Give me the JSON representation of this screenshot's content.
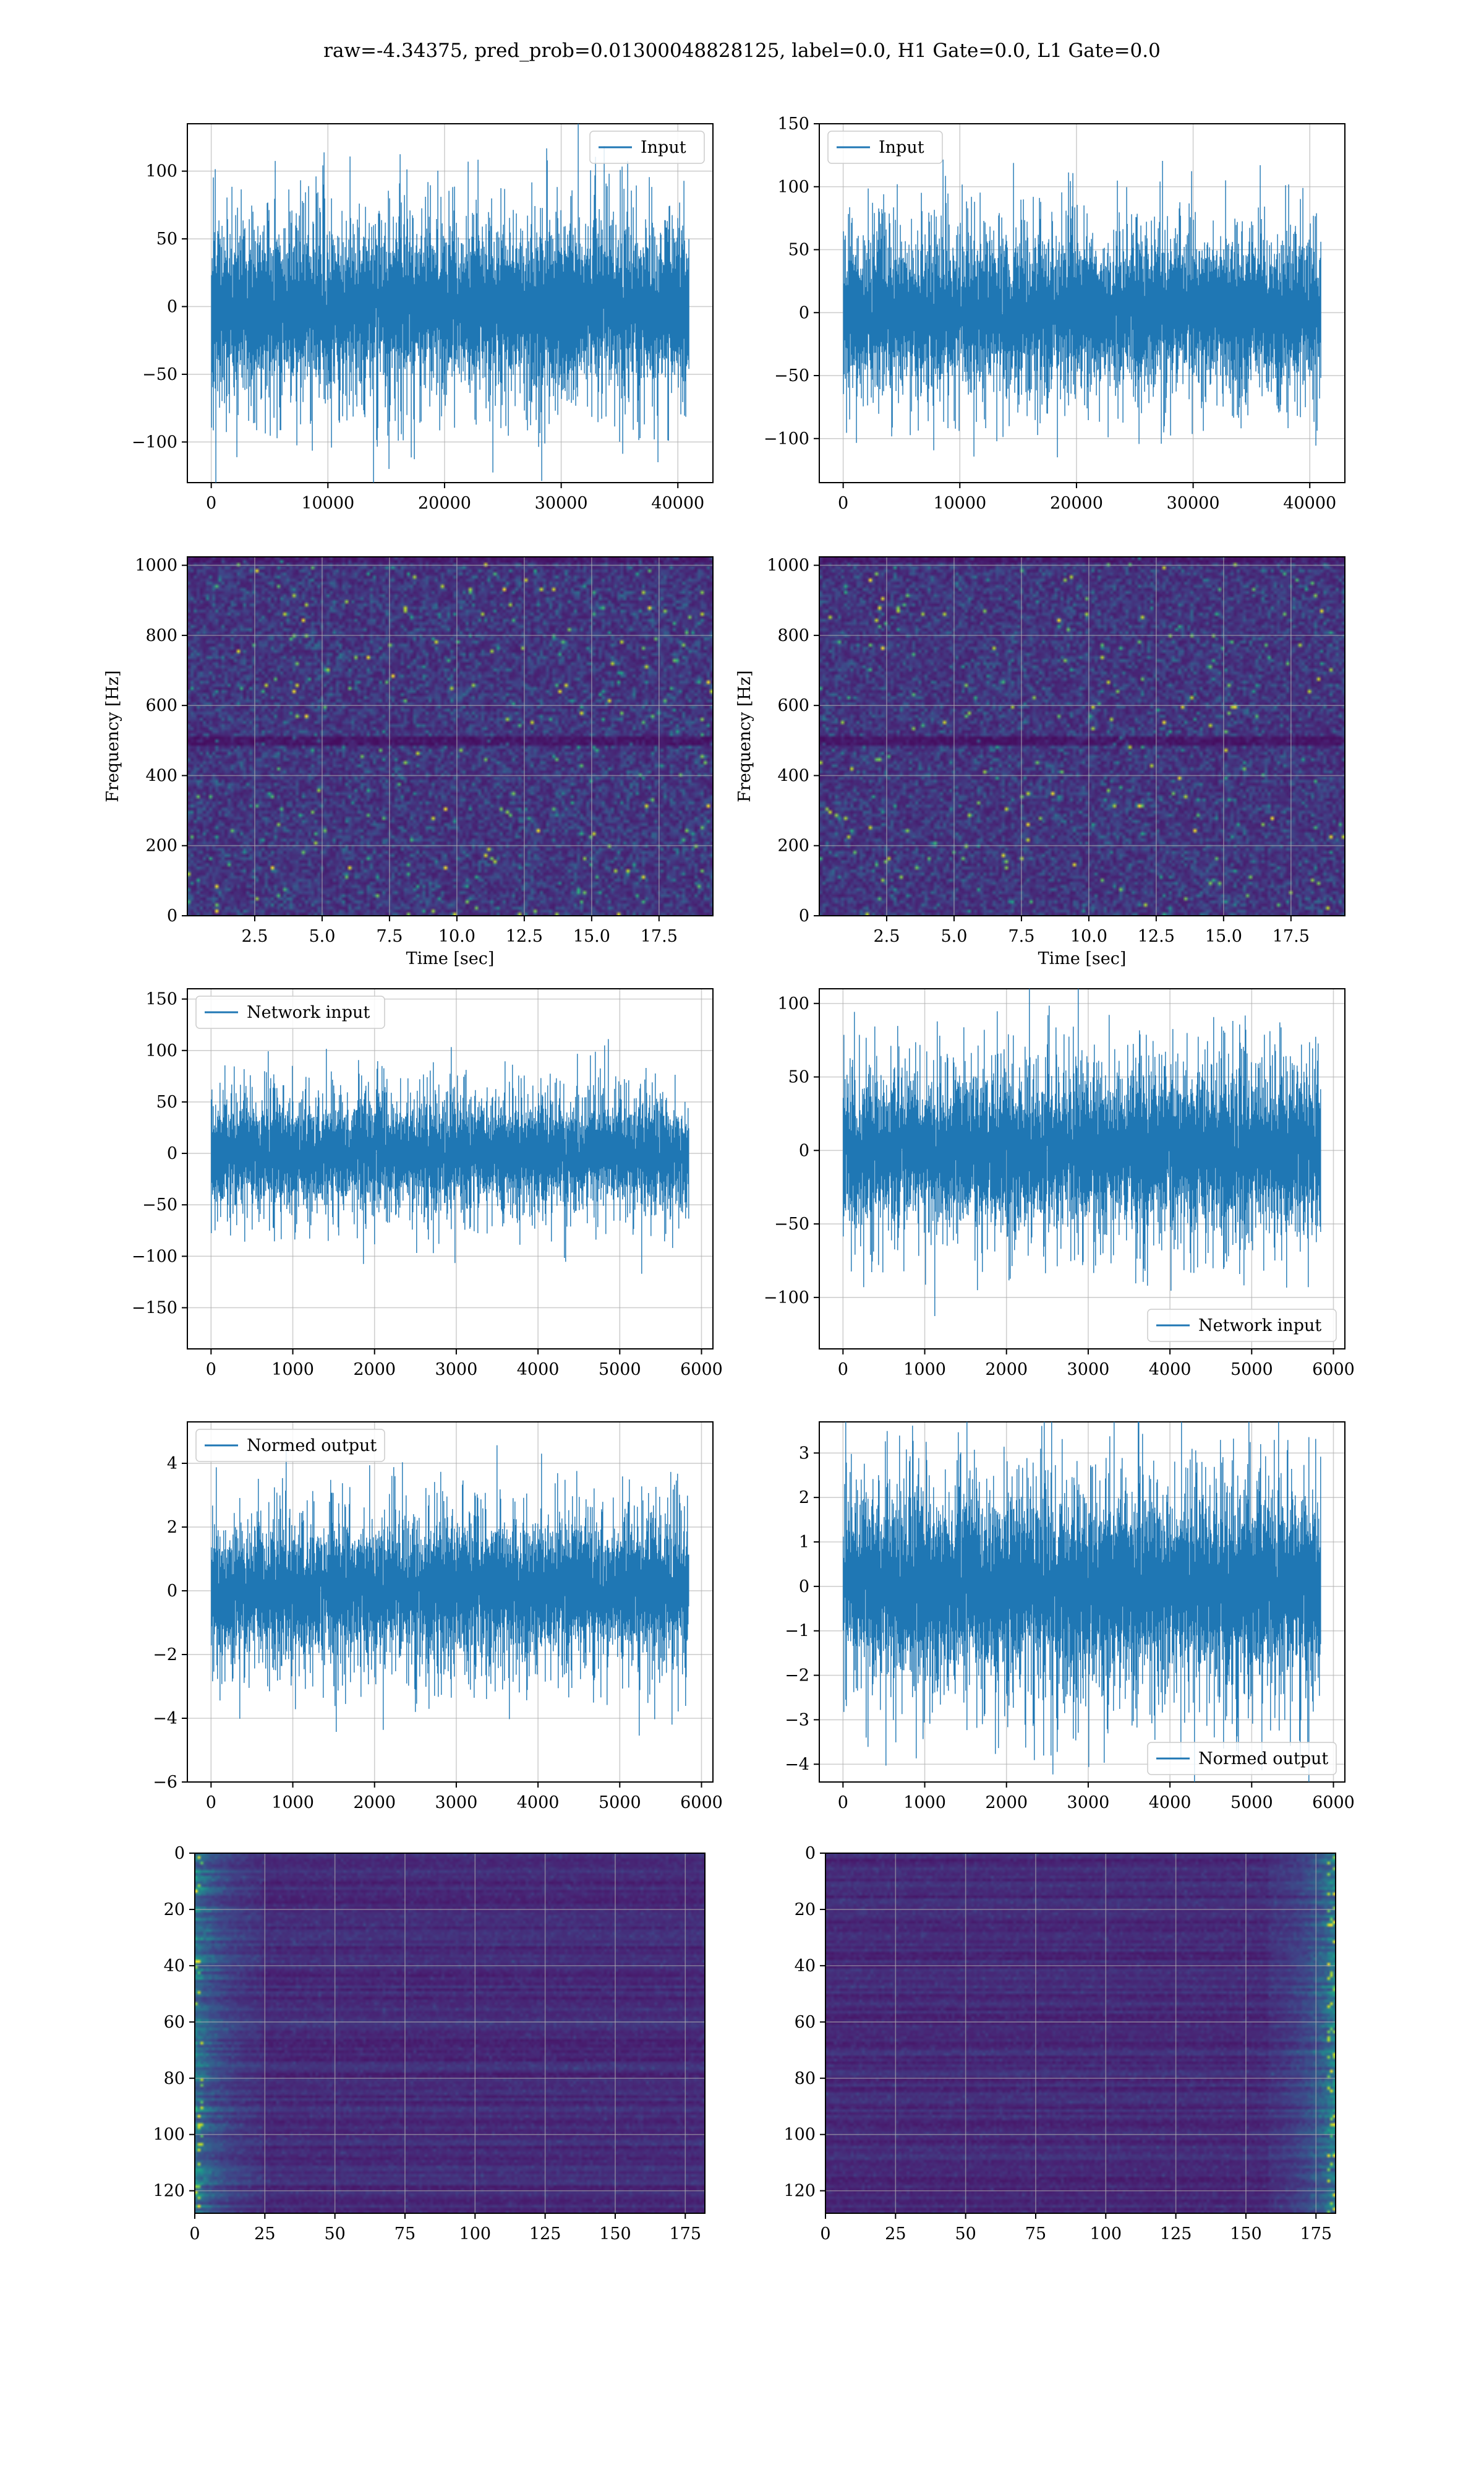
{
  "figure": {
    "suptitle": "raw=-4.34375, pred_prob=0.01300048828125, label=0.0, H1 Gate=0.0, L1 Gate=0.0"
  },
  "colors": {
    "line": "#1f77b4",
    "grid": "#b0b0b0",
    "viridis_dark": "#440154",
    "viridis_bright": "#fde725"
  },
  "chart_data": [
    {
      "id": "input_h1",
      "type": "line",
      "series": [
        {
          "name": "Input",
          "n": 40960,
          "approx_std": 25
        }
      ],
      "xlim": [
        -2048,
        43008
      ],
      "ylim": [
        -130,
        135
      ],
      "xticks": [
        0,
        10000,
        20000,
        30000,
        40000
      ],
      "xtick_labels": [
        "0",
        "10000",
        "20000",
        "30000",
        "40000"
      ],
      "yticks": [
        -100,
        -50,
        0,
        50,
        100
      ],
      "ytick_labels": [
        "−100",
        "−50",
        "0",
        "50",
        "100"
      ],
      "legend": "upper right",
      "grid": true,
      "xlabel": "",
      "ylabel": ""
    },
    {
      "id": "input_l1",
      "type": "line",
      "series": [
        {
          "name": "Input",
          "n": 40960,
          "approx_std": 25
        }
      ],
      "xlim": [
        -2048,
        43008
      ],
      "ylim": [
        -135,
        150
      ],
      "xticks": [
        0,
        10000,
        20000,
        30000,
        40000
      ],
      "xtick_labels": [
        "0",
        "10000",
        "20000",
        "30000",
        "40000"
      ],
      "yticks": [
        -100,
        -50,
        0,
        50,
        100,
        150
      ],
      "ytick_labels": [
        "−100",
        "−50",
        "0",
        "50",
        "100",
        "150"
      ],
      "legend": "upper left",
      "grid": true,
      "xlabel": "",
      "ylabel": ""
    },
    {
      "id": "spec_h1",
      "type": "heatmap",
      "xlim": [
        0,
        19.5
      ],
      "ylim": [
        0,
        1024
      ],
      "xticks": [
        2.5,
        5,
        7.5,
        10,
        12.5,
        15,
        17.5
      ],
      "xtick_labels": [
        "2.5",
        "5.0",
        "7.5",
        "10.0",
        "12.5",
        "15.0",
        "17.5"
      ],
      "yticks": [
        0,
        200,
        400,
        600,
        800,
        1000
      ],
      "ytick_labels": [
        "0",
        "200",
        "400",
        "600",
        "800",
        "1000"
      ],
      "xlabel": "Time [sec]",
      "ylabel": "Frequency [Hz]",
      "grid": true,
      "colormap": "viridis"
    },
    {
      "id": "spec_l1",
      "type": "heatmap",
      "xlim": [
        0,
        19.5
      ],
      "ylim": [
        0,
        1024
      ],
      "xticks": [
        2.5,
        5,
        7.5,
        10,
        12.5,
        15,
        17.5
      ],
      "xtick_labels": [
        "2.5",
        "5.0",
        "7.5",
        "10.0",
        "12.5",
        "15.0",
        "17.5"
      ],
      "yticks": [
        0,
        200,
        400,
        600,
        800,
        1000
      ],
      "ytick_labels": [
        "0",
        "200",
        "400",
        "600",
        "800",
        "1000"
      ],
      "xlabel": "Time [sec]",
      "ylabel": "Frequency [Hz]",
      "grid": true,
      "colormap": "viridis"
    },
    {
      "id": "net_h1",
      "type": "line",
      "series": [
        {
          "name": "Network input",
          "n": 5850,
          "approx_std": 22
        }
      ],
      "xlim": [
        -290,
        6140
      ],
      "ylim": [
        -190,
        160
      ],
      "xticks": [
        0,
        1000,
        2000,
        3000,
        4000,
        5000,
        6000
      ],
      "xtick_labels": [
        "0",
        "1000",
        "2000",
        "3000",
        "4000",
        "5000",
        "6000"
      ],
      "yticks": [
        -150,
        -100,
        -50,
        0,
        50,
        100,
        150
      ],
      "ytick_labels": [
        "−150",
        "−100",
        "−50",
        "0",
        "50",
        "100",
        "150"
      ],
      "legend": "upper left",
      "grid": true,
      "xlabel": "",
      "ylabel": ""
    },
    {
      "id": "net_l1",
      "type": "line",
      "series": [
        {
          "name": "Network input",
          "n": 5850,
          "approx_std": 22
        }
      ],
      "xlim": [
        -290,
        6140
      ],
      "ylim": [
        -135,
        110
      ],
      "xticks": [
        0,
        1000,
        2000,
        3000,
        4000,
        5000,
        6000
      ],
      "xtick_labels": [
        "0",
        "1000",
        "2000",
        "3000",
        "4000",
        "5000",
        "6000"
      ],
      "yticks": [
        -100,
        -50,
        0,
        50,
        100
      ],
      "ytick_labels": [
        "−100",
        "−50",
        "0",
        "50",
        "100"
      ],
      "legend": "lower right",
      "grid": true,
      "xlabel": "",
      "ylabel": ""
    },
    {
      "id": "norm_h1",
      "type": "line",
      "series": [
        {
          "name": "Normed output",
          "n": 5850,
          "approx_std": 0.9
        }
      ],
      "xlim": [
        -290,
        6140
      ],
      "ylim": [
        -6,
        5.3
      ],
      "xticks": [
        0,
        1000,
        2000,
        3000,
        4000,
        5000,
        6000
      ],
      "xtick_labels": [
        "0",
        "1000",
        "2000",
        "3000",
        "4000",
        "5000",
        "6000"
      ],
      "yticks": [
        -6,
        -4,
        -2,
        0,
        2,
        4
      ],
      "ytick_labels": [
        "−6",
        "−4",
        "−2",
        "0",
        "2",
        "4"
      ],
      "legend": "upper left",
      "grid": true,
      "xlabel": "",
      "ylabel": ""
    },
    {
      "id": "norm_l1",
      "type": "line",
      "series": [
        {
          "name": "Normed output",
          "n": 5850,
          "approx_std": 0.9
        }
      ],
      "xlim": [
        -290,
        6140
      ],
      "ylim": [
        -4.4,
        3.7
      ],
      "xticks": [
        0,
        1000,
        2000,
        3000,
        4000,
        5000,
        6000
      ],
      "xtick_labels": [
        "0",
        "1000",
        "2000",
        "3000",
        "4000",
        "5000",
        "6000"
      ],
      "yticks": [
        -4,
        -3,
        -2,
        -1,
        0,
        1,
        2,
        3
      ],
      "ytick_labels": [
        "−4",
        "−3",
        "−2",
        "−1",
        "0",
        "1",
        "2",
        "3"
      ],
      "legend": "lower right",
      "grid": true,
      "xlabel": "",
      "ylabel": ""
    },
    {
      "id": "feat_h1",
      "type": "heatmap",
      "rows": 128,
      "cols": 182,
      "xlim": [
        0,
        182
      ],
      "ylim": [
        128,
        0
      ],
      "xticks": [
        0,
        25,
        50,
        75,
        100,
        125,
        150,
        175
      ],
      "xtick_labels": [
        "0",
        "25",
        "50",
        "75",
        "100",
        "125",
        "150",
        "175"
      ],
      "yticks": [
        0,
        20,
        40,
        60,
        80,
        100,
        120
      ],
      "ytick_labels": [
        "0",
        "20",
        "40",
        "60",
        "80",
        "100",
        "120"
      ],
      "bright_region": "left",
      "grid": true,
      "colormap": "viridis"
    },
    {
      "id": "feat_l1",
      "type": "heatmap",
      "rows": 128,
      "cols": 182,
      "xlim": [
        0,
        182
      ],
      "ylim": [
        128,
        0
      ],
      "xticks": [
        0,
        25,
        50,
        75,
        100,
        125,
        150,
        175
      ],
      "xtick_labels": [
        "0",
        "25",
        "50",
        "75",
        "100",
        "125",
        "150",
        "175"
      ],
      "yticks": [
        0,
        20,
        40,
        60,
        80,
        100,
        120
      ],
      "ytick_labels": [
        "0",
        "20",
        "40",
        "60",
        "80",
        "100",
        "120"
      ],
      "bright_region": "right",
      "grid": true,
      "colormap": "viridis"
    }
  ]
}
